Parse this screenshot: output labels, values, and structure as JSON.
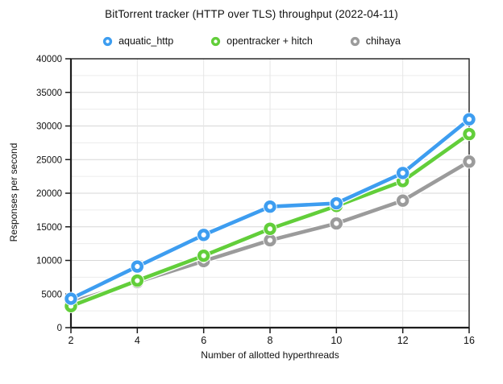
{
  "chart_data": {
    "type": "line",
    "title": "BitTorrent tracker (HTTP over TLS) throughput (2022-04-11)",
    "xlabel": "Number of allotted hyperthreads",
    "ylabel": "Responses per second",
    "categories": [
      2,
      4,
      6,
      8,
      10,
      12,
      16
    ],
    "series": [
      {
        "name": "aquatic_http",
        "color": "#3D9DF0",
        "values": [
          4300,
          9100,
          13800,
          18000,
          18500,
          23000,
          31000
        ]
      },
      {
        "name": "opentracker + hitch",
        "color": "#62CE3A",
        "values": [
          3200,
          7000,
          10700,
          14700,
          18100,
          21800,
          28800
        ]
      },
      {
        "name": "chihaya",
        "color": "#9B9B9B",
        "values": [
          3800,
          6800,
          9900,
          13000,
          15500,
          18900,
          24700
        ]
      }
    ],
    "ylim": [
      0,
      40000
    ],
    "y_major_step": 5000,
    "y_minor_step": 2500,
    "grid": true,
    "legend_position": "top",
    "marker": "ring"
  },
  "style_colors": {
    "axis": "#1c1c1c",
    "tick_label": "#111111",
    "grid_major": "#d7d7d7",
    "grid_minor": "#ececec",
    "grid_vertical": "#e6e6e6",
    "background": "#ffffff",
    "marker_hole": "#ffffff"
  }
}
